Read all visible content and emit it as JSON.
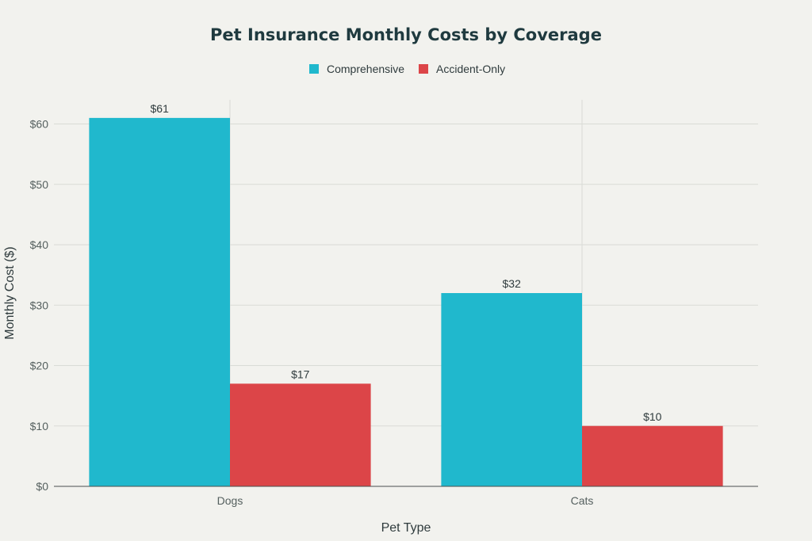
{
  "colors": {
    "comprehensive": "#20b8cd",
    "accident_only": "#dc4548",
    "background": "#f2f2ee"
  },
  "chart_data": {
    "type": "bar",
    "title": "Pet Insurance Monthly Costs by Coverage",
    "xlabel": "Pet Type",
    "ylabel": "Monthly Cost ($)",
    "categories": [
      "Dogs",
      "Cats"
    ],
    "series": [
      {
        "name": "Comprehensive",
        "values": [
          61,
          32
        ],
        "labels": [
          "$61",
          "$32"
        ]
      },
      {
        "name": "Accident-Only",
        "values": [
          17,
          10
        ],
        "labels": [
          "$17",
          "$10"
        ]
      }
    ],
    "ylim": [
      0,
      64
    ],
    "yticks": [
      0,
      10,
      20,
      30,
      40,
      50,
      60
    ],
    "ytick_labels": [
      "$0",
      "$10",
      "$20",
      "$30",
      "$40",
      "$50",
      "$60"
    ],
    "grid": true,
    "legend_position": "top-center"
  }
}
